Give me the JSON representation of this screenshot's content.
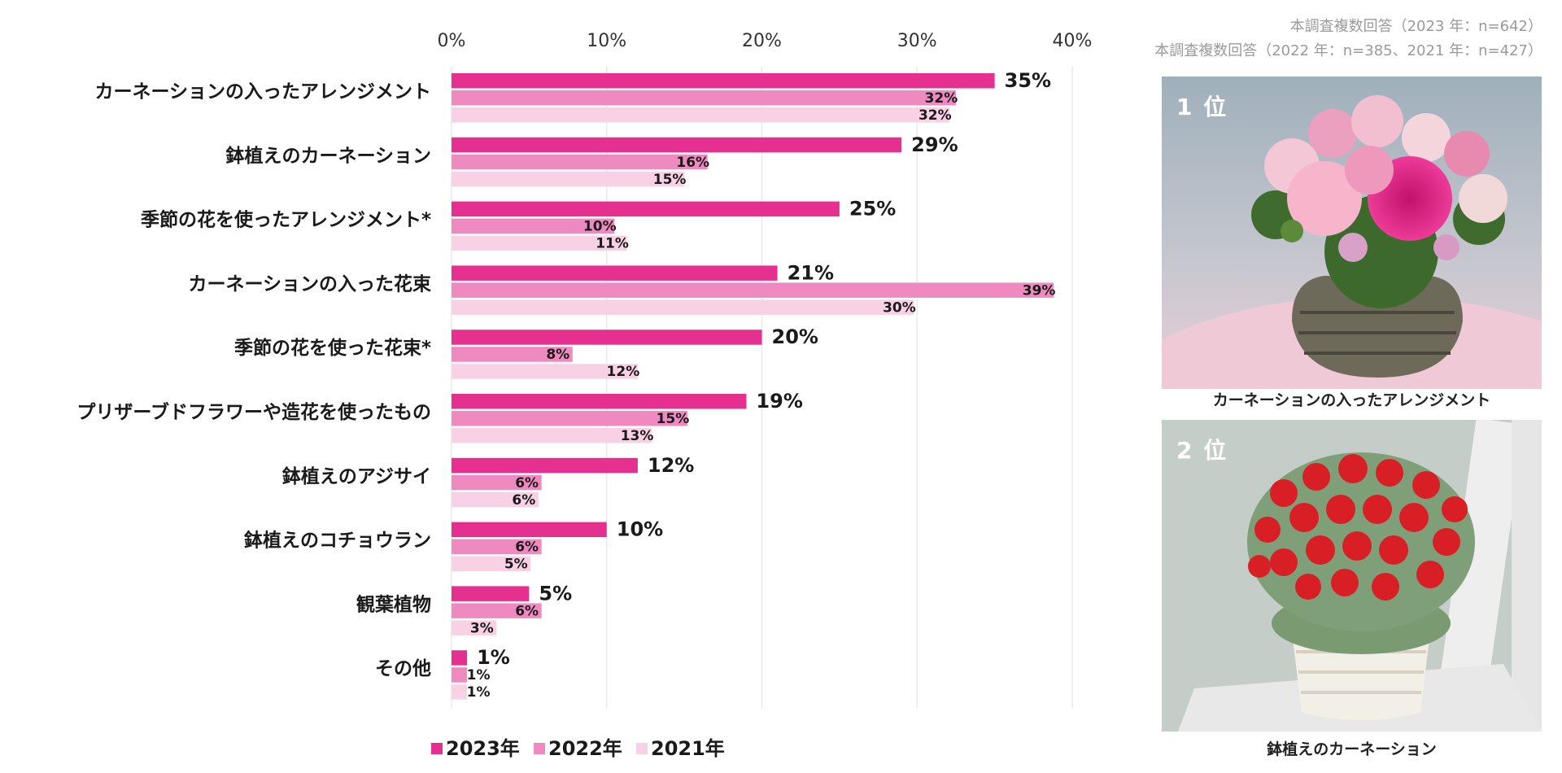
{
  "notes": {
    "line1": "本調査複数回答（2023 年：n=642）",
    "line2": "本調査複数回答（2022 年：n=385、2021 年：n=427）"
  },
  "chart_data": {
    "type": "bar",
    "orientation": "horizontal",
    "categories": [
      "カーネーションの入ったアレンジメント",
      "鉢植えのカーネーション",
      "季節の花を使ったアレンジメント*",
      "カーネーションの入った花束",
      "季節の花を使った花束*",
      "プリザーブドフラワーや造花を使ったもの",
      "鉢植えのアジサイ",
      "鉢植えのコチョウラン",
      "観葉植物",
      "その他"
    ],
    "series": [
      {
        "name": "2023年",
        "color": "#e5308f",
        "values": [
          35,
          29,
          25,
          21,
          20,
          19,
          12,
          10,
          5,
          1
        ],
        "labels": [
          "35%",
          "29%",
          "25%",
          "21%",
          "20%",
          "19%",
          "12%",
          "10%",
          "5%",
          "1%"
        ]
      },
      {
        "name": "2022年",
        "color": "#ef8ac0",
        "values": [
          32.5,
          16.5,
          10.5,
          38.8,
          7.8,
          15.2,
          5.8,
          5.8,
          5.8,
          1
        ],
        "labels": [
          "32%",
          "16%",
          "10%",
          "39%",
          "8%",
          "15%",
          "6%",
          "6%",
          "6%",
          "1%"
        ]
      },
      {
        "name": "2021年",
        "color": "#f9d1e5",
        "values": [
          32.1,
          15,
          11.3,
          29.8,
          12,
          12.9,
          5.6,
          5.1,
          2.9,
          1
        ],
        "labels": [
          "32%",
          "15%",
          "11%",
          "30%",
          "12%",
          "13%",
          "6%",
          "5%",
          "3%",
          "1%"
        ]
      }
    ],
    "xlim": [
      0,
      40
    ],
    "xticks": [
      "0%",
      "10%",
      "20%",
      "30%",
      "40%"
    ],
    "grid": true,
    "legend_position": "bottom"
  },
  "photos": [
    {
      "rank": "1 位",
      "caption": "カーネーションの入ったアレンジメント"
    },
    {
      "rank": "2 位",
      "caption": "鉢植えのカーネーション"
    }
  ]
}
